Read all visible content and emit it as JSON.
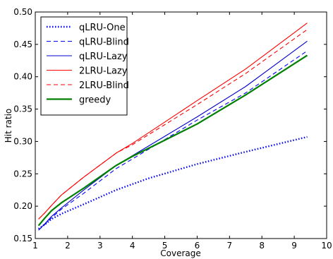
{
  "chart_data": {
    "type": "line",
    "title": "",
    "xlabel": "Coverage",
    "ylabel": "Hit ratio",
    "xlim": [
      1,
      10
    ],
    "ylim": [
      0.15,
      0.5
    ],
    "xticks": [
      1,
      2,
      3,
      4,
      5,
      6,
      7,
      8,
      9,
      10
    ],
    "yticks": [
      0.15,
      0.2,
      0.25,
      0.3,
      0.35,
      0.4,
      0.45,
      0.5
    ],
    "ytick_labels": [
      "0.15",
      "0.20",
      "0.25",
      "0.30",
      "0.35",
      "0.40",
      "0.45",
      "0.50"
    ],
    "grid": false,
    "legend_position": "upper-left",
    "series": [
      {
        "name": "qLRU-One",
        "color": "#0000ff",
        "style": "dotted",
        "x": [
          1.1,
          1.3,
          1.5,
          1.8,
          2.5,
          3.5,
          4.5,
          6.0,
          7.5,
          9.4
        ],
        "y": [
          0.165,
          0.172,
          0.18,
          0.188,
          0.203,
          0.225,
          0.243,
          0.265,
          0.284,
          0.307
        ]
      },
      {
        "name": "qLRU-Blind",
        "color": "#0000ff",
        "style": "dashed",
        "x": [
          1.1,
          1.3,
          1.5,
          1.8,
          2.5,
          3.5,
          4.0,
          5.0,
          6.0,
          7.5,
          9.4
        ],
        "y": [
          0.163,
          0.172,
          0.182,
          0.195,
          0.22,
          0.258,
          0.273,
          0.303,
          0.333,
          0.375,
          0.44
        ]
      },
      {
        "name": "qLRU-Lazy",
        "color": "#0000cc",
        "style": "solid",
        "x": [
          1.1,
          1.3,
          1.5,
          1.8,
          2.5,
          3.5,
          4.0,
          5.0,
          6.0,
          7.5,
          9.4
        ],
        "y": [
          0.163,
          0.173,
          0.184,
          0.197,
          0.225,
          0.263,
          0.278,
          0.308,
          0.338,
          0.385,
          0.455
        ]
      },
      {
        "name": "2LRU-Lazy",
        "color": "#ff0000",
        "style": "solid",
        "x": [
          1.1,
          1.3,
          1.5,
          1.8,
          2.5,
          3.5,
          4.0,
          5.0,
          6.0,
          7.5,
          9.4
        ],
        "y": [
          0.18,
          0.19,
          0.201,
          0.217,
          0.245,
          0.282,
          0.297,
          0.33,
          0.363,
          0.412,
          0.483
        ]
      },
      {
        "name": "2LRU-Blind",
        "color": "#ff0000",
        "style": "dashed",
        "x": [
          1.1,
          1.3,
          1.5,
          1.8,
          2.5,
          3.5,
          4.0,
          5.0,
          6.0,
          7.5,
          9.4
        ],
        "y": [
          0.18,
          0.19,
          0.201,
          0.217,
          0.245,
          0.282,
          0.295,
          0.326,
          0.357,
          0.405,
          0.473
        ]
      },
      {
        "name": "greedy",
        "color": "#008000",
        "style": "solid-thick",
        "x": [
          1.1,
          1.3,
          1.5,
          1.8,
          2.5,
          3.5,
          4.0,
          5.0,
          6.0,
          7.5,
          9.4
        ],
        "y": [
          0.17,
          0.182,
          0.193,
          0.205,
          0.228,
          0.263,
          0.277,
          0.302,
          0.327,
          0.372,
          0.433
        ]
      }
    ]
  }
}
